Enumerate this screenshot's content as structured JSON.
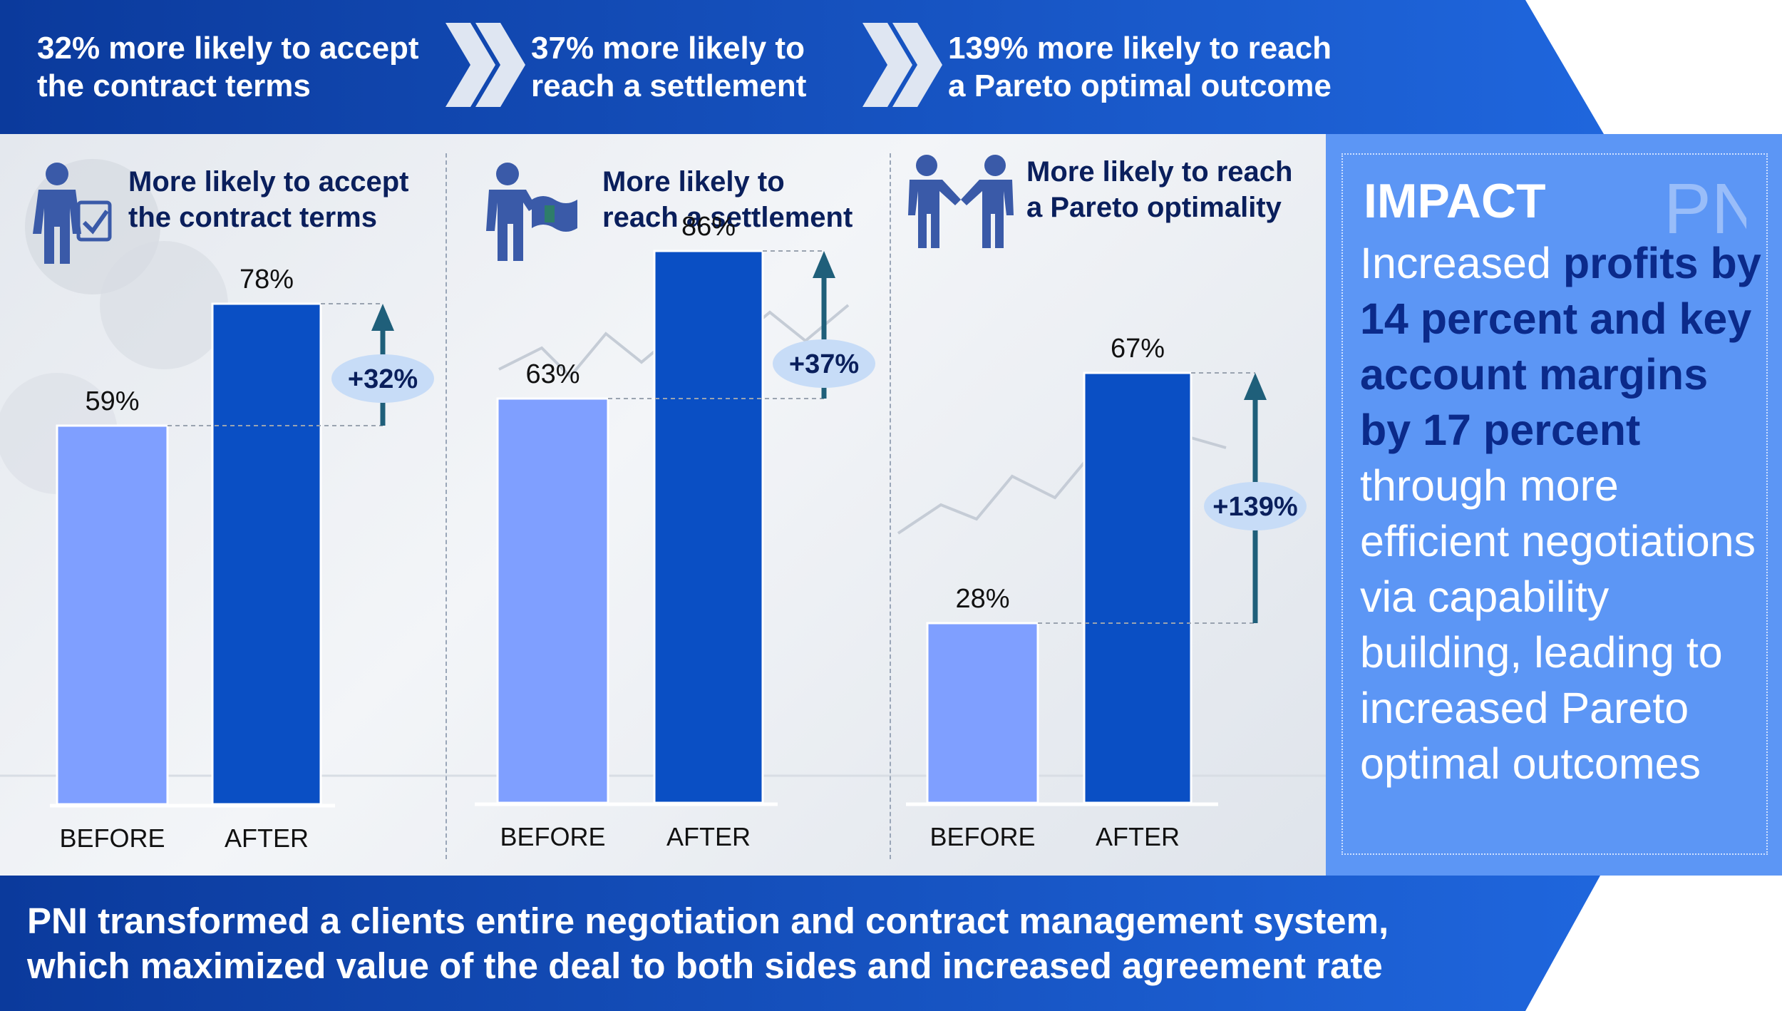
{
  "banner": {
    "items": [
      {
        "line1": "32% more likely to accept",
        "line2": "the contract terms"
      },
      {
        "line1": "37% more likely to",
        "line2": "reach a settlement"
      },
      {
        "line1": "139% more likely to reach",
        "line2": "a Pareto optimal outcome"
      }
    ]
  },
  "chart_data": [
    {
      "type": "bar",
      "title_line1": "More likely to accept",
      "title_line2": "the contract terms",
      "icon": "person-checklist-icon",
      "categories": [
        "BEFORE",
        "AFTER"
      ],
      "values": [
        59,
        78
      ],
      "value_labels": [
        "59%",
        "78%"
      ],
      "change_label": "+32%",
      "ylim": [
        0,
        100
      ]
    },
    {
      "type": "bar",
      "title_line1": "More likely to",
      "title_line2": "reach a settlement",
      "icon": "person-flag-icon",
      "categories": [
        "BEFORE",
        "AFTER"
      ],
      "values": [
        63,
        86
      ],
      "value_labels": [
        "63%",
        "86%"
      ],
      "change_label": "+37%",
      "ylim": [
        0,
        100
      ]
    },
    {
      "type": "bar",
      "title_line1": "More likely to reach",
      "title_line2": "a Pareto optimality",
      "icon": "handshake-icon",
      "categories": [
        "BEFORE",
        "AFTER"
      ],
      "values": [
        28,
        67
      ],
      "value_labels": [
        "28%",
        "67%"
      ],
      "change_label": "+139%",
      "ylim": [
        0,
        100
      ]
    }
  ],
  "impact": {
    "heading": "IMPACT",
    "logo_text": "PNi",
    "text_plain_1": "Increased ",
    "text_em": "profits by 14 percent and key account margins by 17 percent",
    "text_plain_2": " through more efficient negotiations via capability building, leading to increased Pareto optimal outcomes"
  },
  "footer": {
    "line1": "PNI transformed a clients entire negotiation and contract management system,",
    "line2": "which maximized value of the deal to both sides and increased agreement rate"
  },
  "colors": {
    "before_bar": "#7f9fff",
    "after_bar": "#0a4fc4",
    "banner_dark": "#0b3a9c",
    "banner_light": "#1f66dd",
    "impact_bg": "#5c96f5",
    "arrow": "#1f5f7a",
    "badge": "#c7dcf7",
    "title_text": "#0a1f5c"
  }
}
